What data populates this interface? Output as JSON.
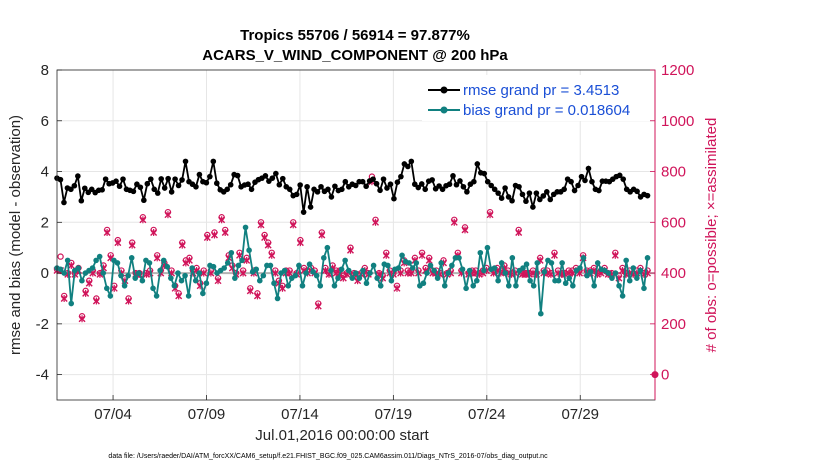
{
  "chart_data": {
    "type": "line",
    "title_line1": "Tropics 55706 / 56914 = 97.877%",
    "title_line2": "ACARS_V_WIND_COMPONENT @ 200 hPa",
    "ylabel_left": "rmse and bias (model - observation)",
    "ylabel_right": "# of obs: o=possible; ×=assimilated",
    "xlabel": "Jul.01,2016 00:00:00 start",
    "footer": "data file: /Users/raeder/DAI/ATM_forcXX/CAM6_setup/f.e21.FHIST_BGC.f09_025.CAM6assim.011/Diags_NTrS_2016-07/obs_diag_output.nc",
    "xlim": [
      1,
      33
    ],
    "ylim_left": [
      -5,
      8
    ],
    "ylim_right": [
      -100,
      1200
    ],
    "yticks_left": [
      "8",
      "6",
      "4",
      "2",
      "0",
      "-2",
      "-4"
    ],
    "yticks_left_values": [
      8,
      6,
      4,
      2,
      0,
      -2,
      -4
    ],
    "yticks_right": [
      "1200",
      "1000",
      "800",
      "600",
      "400",
      "200",
      "0"
    ],
    "yticks_right_values": [
      1200,
      1000,
      800,
      600,
      400,
      200,
      0
    ],
    "xticks": [
      "07/04",
      "07/09",
      "07/14",
      "07/19",
      "07/24",
      "07/29"
    ],
    "xticks_values": [
      4,
      9,
      14,
      19,
      24,
      29
    ],
    "grid": true,
    "legend_position": "top-right",
    "colors": {
      "rmse": "#000000",
      "bias": "#118080",
      "obs": "#d0145a",
      "zero_line": "#b3b3b3",
      "grid": "#e6e6e6",
      "legend_text": "#1a4fd6"
    },
    "series": [
      {
        "name": "rmse grand pr = 3.4513",
        "axis": "left",
        "values": [
          3.74,
          3.68,
          2.78,
          3.35,
          3.3,
          3.44,
          3.82,
          2.85,
          3.34,
          3.18,
          3.3,
          3.17,
          3.26,
          3.28,
          3.7,
          3.52,
          3.55,
          3.62,
          3.42,
          3.7,
          3.3,
          3.26,
          3.22,
          3.5,
          3.38,
          2.87,
          3.52,
          3.7,
          3.3,
          3.15,
          3.71,
          3.35,
          3.72,
          3.2,
          3.7,
          3.45,
          3.67,
          4.4,
          3.6,
          3.5,
          3.4,
          3.88,
          3.6,
          3.56,
          3.8,
          4.4,
          3.54,
          3.28,
          3.2,
          3.3,
          3.48,
          3.88,
          3.84,
          3.4,
          3.47,
          3.5,
          3.3,
          3.58,
          3.68,
          3.74,
          3.83,
          3.62,
          3.74,
          3.92,
          3.48,
          3.72,
          3.4,
          3.3,
          3.05,
          3.1,
          3.47,
          2.4,
          3.4,
          2.6,
          3.3,
          3.2,
          3.4,
          3.22,
          3.3,
          3.0,
          3.42,
          3.25,
          3.3,
          3.6,
          3.4,
          3.5,
          3.45,
          3.6,
          3.6,
          3.42,
          3.63,
          3.7,
          3.52,
          3.26,
          3.7,
          3.35,
          3.5,
          2.93,
          3.58,
          3.8,
          4.3,
          4.2,
          4.4,
          3.5,
          3.37,
          3.51,
          3.3,
          3.62,
          3.67,
          3.32,
          3.43,
          3.3,
          3.44,
          3.5,
          3.83,
          3.48,
          3.63,
          3.4,
          3.2,
          3.5,
          3.6,
          4.3,
          3.95,
          3.92,
          3.6,
          3.45,
          3.3,
          3.15,
          2.95,
          3.35,
          3.0,
          2.85,
          3.45,
          3.4,
          3.1,
          2.83,
          3.15,
          2.6,
          3.15,
          2.9,
          3.04,
          3.2,
          2.9,
          3.1,
          3.2,
          3.2,
          3.3,
          3.7,
          3.6,
          3.25,
          3.45,
          3.8,
          3.65,
          4.12,
          3.6,
          3.3,
          3.25,
          3.62,
          3.62,
          3.6,
          3.7,
          3.8,
          3.85,
          3.7,
          3.3,
          3.2,
          3.3,
          3.22,
          3.0,
          3.1,
          3.05
        ]
      },
      {
        "name": "bias grand pr = 0.018604",
        "axis": "left",
        "values": [
          0.2,
          0.15,
          0.0,
          0.5,
          -1.2,
          0.1,
          0.2,
          -0.3,
          0.0,
          0.1,
          0.2,
          0.5,
          0.65,
          0.0,
          -0.6,
          -0.9,
          0.5,
          0.4,
          -0.1,
          -0.5,
          -0.1,
          0.6,
          -0.2,
          0.0,
          -0.3,
          0.5,
          0.4,
          -0.6,
          -0.9,
          0.1,
          0.5,
          0.25,
          -0.2,
          -0.5,
          0.0,
          -0.3,
          -0.1,
          -0.9,
          0.2,
          -0.3,
          0.0,
          -0.8,
          -0.4,
          0.3,
          0.25,
          0.0,
          0.1,
          0.2,
          0.4,
          0.8,
          -0.2,
          0.3,
          0.5,
          1.8,
          0.9,
          0.05,
          0.15,
          -0.3,
          -0.1,
          0.3,
          0.3,
          -0.4,
          -1.0,
          0.0,
          0.1,
          -0.5,
          -0.2,
          -0.1,
          0.3,
          -0.5,
          0.0,
          0.35,
          0.05,
          -0.1,
          -0.5,
          0.6,
          1.0,
          0.1,
          -0.5,
          -0.2,
          0.15,
          0.5,
          0.1,
          -0.2,
          0.0,
          -0.2,
          0.1,
          -0.4,
          0.0,
          0.3,
          -0.2,
          -0.5,
          0.35,
          0.3,
          -0.3,
          0.15,
          0.2,
          0.7,
          0.45,
          0.4,
          0.2,
          0.4,
          -0.5,
          -0.4,
          0.0,
          0.3,
          0.1,
          -0.2,
          0.4,
          -0.5,
          0.0,
          0.3,
          0.6,
          0.6,
          0.15,
          -0.6,
          0.1,
          -0.5,
          -0.3,
          0.8,
          0.1,
          1.0,
          0.15,
          0.2,
          -0.3,
          0.4,
          0.0,
          -0.5,
          0.6,
          -0.5,
          0.1,
          0.2,
          0.35,
          -0.3,
          -0.5,
          0.4,
          -1.6,
          0.05,
          0.5,
          0.4,
          -0.3,
          -0.3,
          0.4,
          -0.4,
          -0.2,
          -0.5,
          0.1,
          0.2,
          0.6,
          -0.1,
          0.05,
          -0.5,
          0.4,
          0.15,
          0.1,
          0.0,
          -0.2,
          0.0,
          -0.5,
          -0.9,
          0.5,
          -0.3,
          0.2,
          -0.2,
          0.1,
          -0.6,
          0.6
        ]
      },
      {
        "name": "possible",
        "axis": "right",
        "values": [
          415,
          465,
          310,
          400,
          440,
          400,
          420,
          230,
          330,
          370,
          410,
          300,
          400,
          430,
          570,
          470,
          350,
          530,
          410,
          380,
          300,
          520,
          400,
          400,
          620,
          400,
          410,
          570,
          470,
          410,
          440,
          640,
          410,
          350,
          320,
          520,
          450,
          460,
          410,
          420,
          360,
          410,
          550,
          410,
          560,
          380,
          620,
          570,
          470,
          430,
          400,
          480,
          410,
          460,
          340,
          410,
          320,
          600,
          550,
          520,
          480,
          410,
          370,
          350,
          410,
          410,
          600,
          400,
          530,
          420,
          410,
          420,
          410,
          280,
          560,
          420,
          400,
          430,
          410,
          410,
          390,
          400,
          500,
          400,
          380,
          400,
          420,
          400,
          780,
          610,
          400,
          390,
          480,
          410,
          400,
          350,
          410,
          450,
          410,
          410,
          460,
          410,
          480,
          420,
          460,
          410,
          410,
          400,
          450,
          400,
          410,
          610,
          480,
          410,
          580,
          400,
          410,
          410,
          400,
          410,
          420,
          640,
          410,
          420,
          410,
          430,
          410,
          400,
          410,
          570,
          400,
          400,
          400,
          410,
          400,
          460,
          410,
          410,
          400,
          480,
          410,
          400,
          400,
          410,
          410,
          420,
          410,
          470,
          410,
          410,
          420,
          400,
          410,
          420,
          400,
          400,
          480,
          390,
          420,
          400,
          410,
          400,
          410,
          420,
          400,
          410
        ]
      },
      {
        "name": "assimilated",
        "axis": "right",
        "values": [
          410,
          410,
          300,
          395,
          430,
          395,
          410,
          220,
          320,
          360,
          400,
          290,
          395,
          420,
          560,
          460,
          340,
          520,
          400,
          370,
          290,
          510,
          395,
          395,
          610,
          395,
          400,
          560,
          460,
          400,
          430,
          630,
          400,
          340,
          310,
          510,
          440,
          450,
          400,
          410,
          350,
          400,
          540,
          400,
          550,
          370,
          610,
          560,
          460,
          420,
          395,
          470,
          400,
          450,
          330,
          400,
          310,
          590,
          540,
          510,
          470,
          400,
          360,
          340,
          400,
          400,
          590,
          395,
          520,
          410,
          400,
          410,
          400,
          270,
          550,
          410,
          395,
          420,
          400,
          400,
          380,
          395,
          490,
          395,
          370,
          395,
          410,
          395,
          760,
          600,
          395,
          380,
          470,
          400,
          395,
          340,
          400,
          440,
          400,
          400,
          450,
          400,
          470,
          410,
          450,
          400,
          400,
          395,
          440,
          395,
          400,
          600,
          470,
          400,
          570,
          395,
          400,
          400,
          395,
          400,
          410,
          630,
          400,
          410,
          400,
          420,
          400,
          395,
          400,
          560,
          395,
          395,
          395,
          400,
          395,
          450,
          400,
          400,
          395,
          470,
          400,
          395,
          395,
          400,
          400,
          410,
          400,
          460,
          400,
          400,
          410,
          395,
          400,
          410,
          395,
          395,
          470,
          380,
          410,
          395,
          400,
          395,
          400,
          410,
          395,
          400
        ]
      }
    ],
    "extra_point": {
      "x": 33,
      "y": 0,
      "axis": "right",
      "marker": "o"
    }
  }
}
